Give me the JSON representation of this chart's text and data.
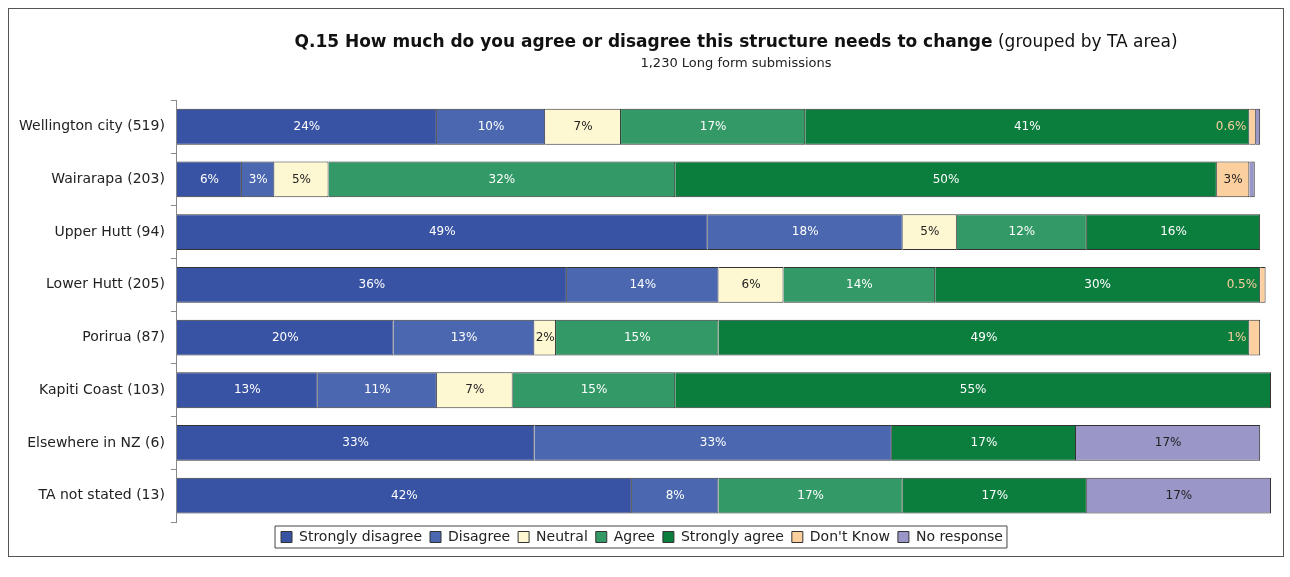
{
  "chart_data": {
    "type": "bar",
    "orientation": "horizontal",
    "stacked": true,
    "title": "Q.15 How much do you agree or disagree this structure needs to change (grouped by TA area)",
    "subtitle": "1,230 Long form submissions",
    "categories": [
      "Wellington city (519)",
      "Wairarapa (203)",
      "Upper Hutt (94)",
      "Lower Hutt (205)",
      "Porirua (87)",
      "Kapiti Coast (103)",
      "Elsewhere in NZ (6)",
      "TA not stated (13)"
    ],
    "series": [
      {
        "name": "Strongly disagree",
        "color": "#3953a4",
        "values": [
          24,
          6,
          49,
          36,
          20,
          13,
          33,
          42
        ],
        "value_labels": [
          "24%",
          "6%",
          "49%",
          "36%",
          "20%",
          "13%",
          "33%",
          "42%"
        ]
      },
      {
        "name": "Disagree",
        "color": "#4a67b0",
        "values": [
          10,
          3,
          18,
          14,
          13,
          11,
          33,
          8
        ],
        "value_labels": [
          "10%",
          "3%",
          "18%",
          "14%",
          "13%",
          "11%",
          "33%",
          "8%"
        ]
      },
      {
        "name": "Neutral",
        "color": "#fdf8d2",
        "values": [
          7,
          5,
          5,
          6,
          2,
          7,
          null,
          null
        ],
        "value_labels": [
          "7%",
          "5%",
          "5%",
          "6%",
          "2%",
          "7%",
          null,
          null
        ]
      },
      {
        "name": "Agree",
        "color": "#339966",
        "values": [
          17,
          32,
          12,
          14,
          15,
          15,
          null,
          17
        ],
        "value_labels": [
          "17%",
          "32%",
          "12%",
          "14%",
          "15%",
          "15%",
          null,
          "17%"
        ]
      },
      {
        "name": "Strongly agree",
        "color": "#0b7e3e",
        "values": [
          41,
          50,
          16,
          30,
          49,
          55,
          17,
          17
        ],
        "value_labels": [
          "41%",
          "50%",
          "16%",
          "30%",
          "49%",
          "55%",
          "17%",
          "17%"
        ]
      },
      {
        "name": "Don't Know",
        "color": "#fccf9f",
        "values": [
          0.6,
          3,
          null,
          0.5,
          1,
          null,
          null,
          null
        ],
        "value_labels": [
          "0.6%",
          "3%",
          null,
          "0.5%",
          "1%",
          null,
          null,
          null
        ]
      },
      {
        "name": "No response",
        "color": "#9a96c8",
        "values": [
          0.4,
          0.5,
          null,
          null,
          null,
          null,
          17,
          17
        ],
        "value_labels": [
          null,
          null,
          null,
          null,
          null,
          null,
          "17%",
          "17%"
        ]
      }
    ],
    "legend": "bottom",
    "grid": false
  }
}
